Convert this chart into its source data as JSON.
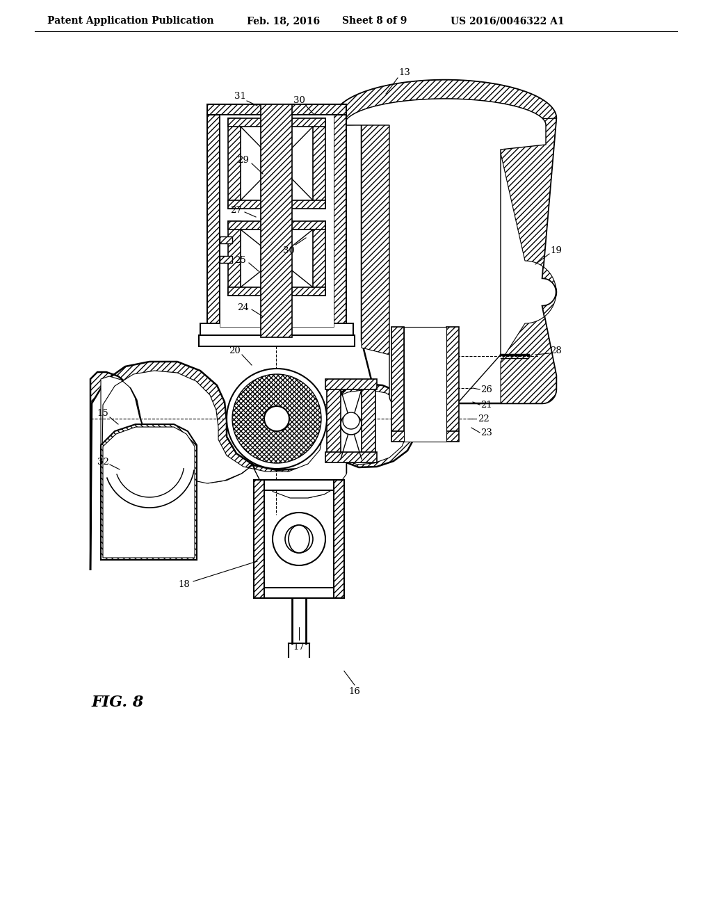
{
  "background_color": "#ffffff",
  "line_color": "#000000",
  "title_line1": "Patent Application Publication",
  "title_date": "Feb. 18, 2016",
  "title_sheet": "Sheet 8 of 9",
  "title_patent": "US 2016/0046322 A1",
  "fig_label": "FIG. 8",
  "fig_width": 10.24,
  "fig_height": 13.2,
  "dpi": 100
}
